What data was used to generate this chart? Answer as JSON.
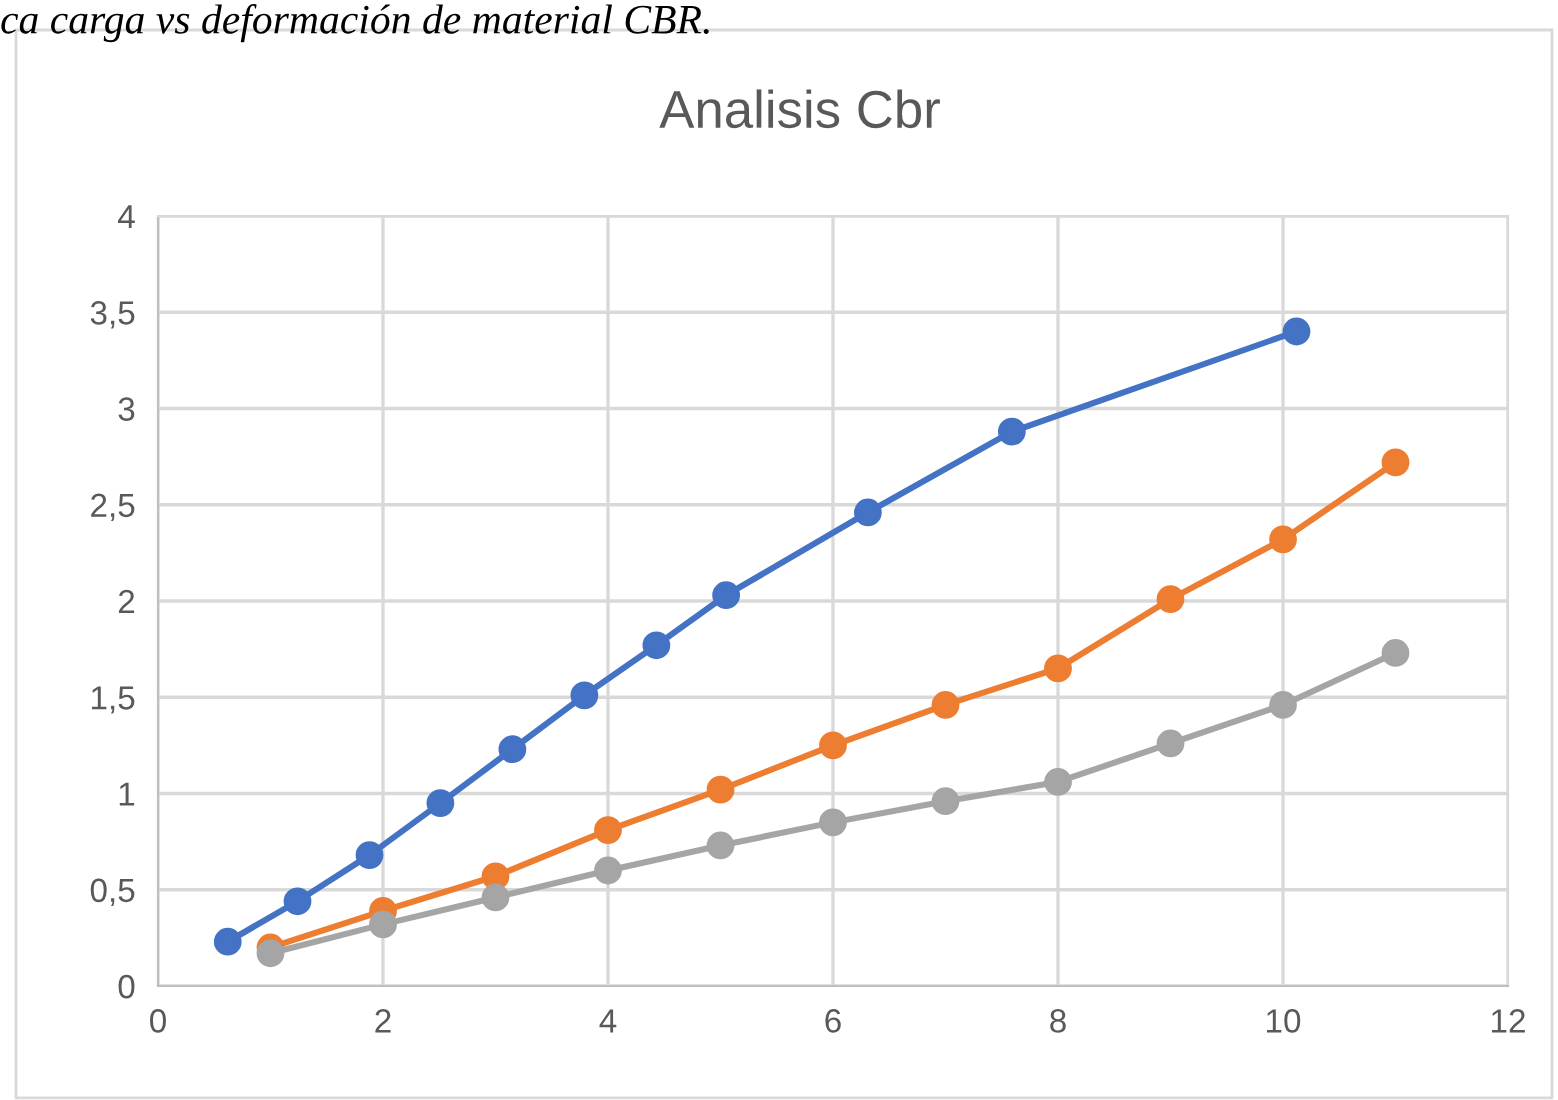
{
  "chart_data": {
    "type": "line",
    "title": "Analisis Cbr",
    "annotations": [
      "ca carga vs deformación de material CBR."
    ],
    "series": [
      {
        "color": "#4472c4",
        "x": [
          0.62,
          1.24,
          1.88,
          2.51,
          3.15,
          3.79,
          4.43,
          5.05,
          6.31,
          7.59,
          10.12
        ],
        "values": [
          0.23,
          0.44,
          0.68,
          0.95,
          1.23,
          1.51,
          1.77,
          2.03,
          2.46,
          2.88,
          3.4
        ]
      },
      {
        "color": "#ed7d31",
        "x": [
          1,
          2,
          3,
          4,
          5,
          6,
          7,
          8,
          9,
          10,
          11
        ],
        "values": [
          0.2,
          0.39,
          0.57,
          0.81,
          1.02,
          1.25,
          1.46,
          1.65,
          2.01,
          2.32,
          2.72
        ]
      },
      {
        "color": "#a5a5a5",
        "x": [
          1,
          2,
          3,
          4,
          5,
          6,
          7,
          8,
          9,
          10,
          11
        ],
        "values": [
          0.17,
          0.32,
          0.46,
          0.6,
          0.73,
          0.85,
          0.96,
          1.06,
          1.26,
          1.46,
          1.73
        ]
      }
    ],
    "xlim": [
      0,
      12
    ],
    "xticks": [
      0,
      2,
      4,
      6,
      8,
      10,
      12
    ],
    "ylim": [
      0,
      4
    ],
    "yticks": [
      0,
      {
        "value": 0.5,
        "label": "0,5"
      },
      1,
      {
        "value": 1.5,
        "label": "1,5"
      },
      2,
      {
        "value": 2.5,
        "label": "2,5"
      },
      3,
      {
        "value": 3.5,
        "label": "3,5"
      },
      4
    ],
    "grid": true,
    "marker": "circle",
    "line_style": "solid"
  }
}
